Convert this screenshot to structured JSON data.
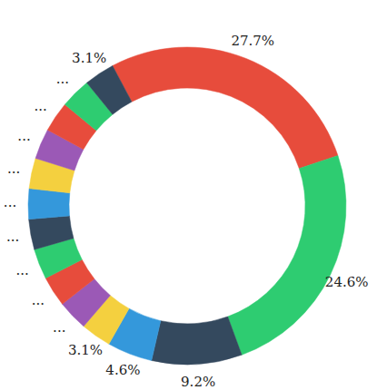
{
  "chart_data": {
    "type": "pie",
    "values": [
      27.7,
      24.6,
      9.2,
      4.6,
      3.1,
      3.1,
      3.1,
      3.1,
      3.1,
      3.1,
      3.1,
      3.1,
      3.1,
      3.1,
      3.1
    ],
    "value_labels": [
      "27.7%",
      "24.6%",
      "9.2%",
      "4.6%",
      "3.1%",
      "...",
      "...",
      "...",
      "...",
      "...",
      "...",
      "...",
      "...",
      "...",
      "3.1%"
    ],
    "colors": [
      "#e74c3c",
      "#2ecc71",
      "#34495e",
      "#3498db",
      "#f4d03f",
      "#9b59b6",
      "#e74c3c",
      "#2ecc71",
      "#34495e",
      "#3498db",
      "#f4d03f",
      "#9b59b6",
      "#e74c3c",
      "#2ecc71",
      "#34495e"
    ],
    "data_labels": true
  }
}
